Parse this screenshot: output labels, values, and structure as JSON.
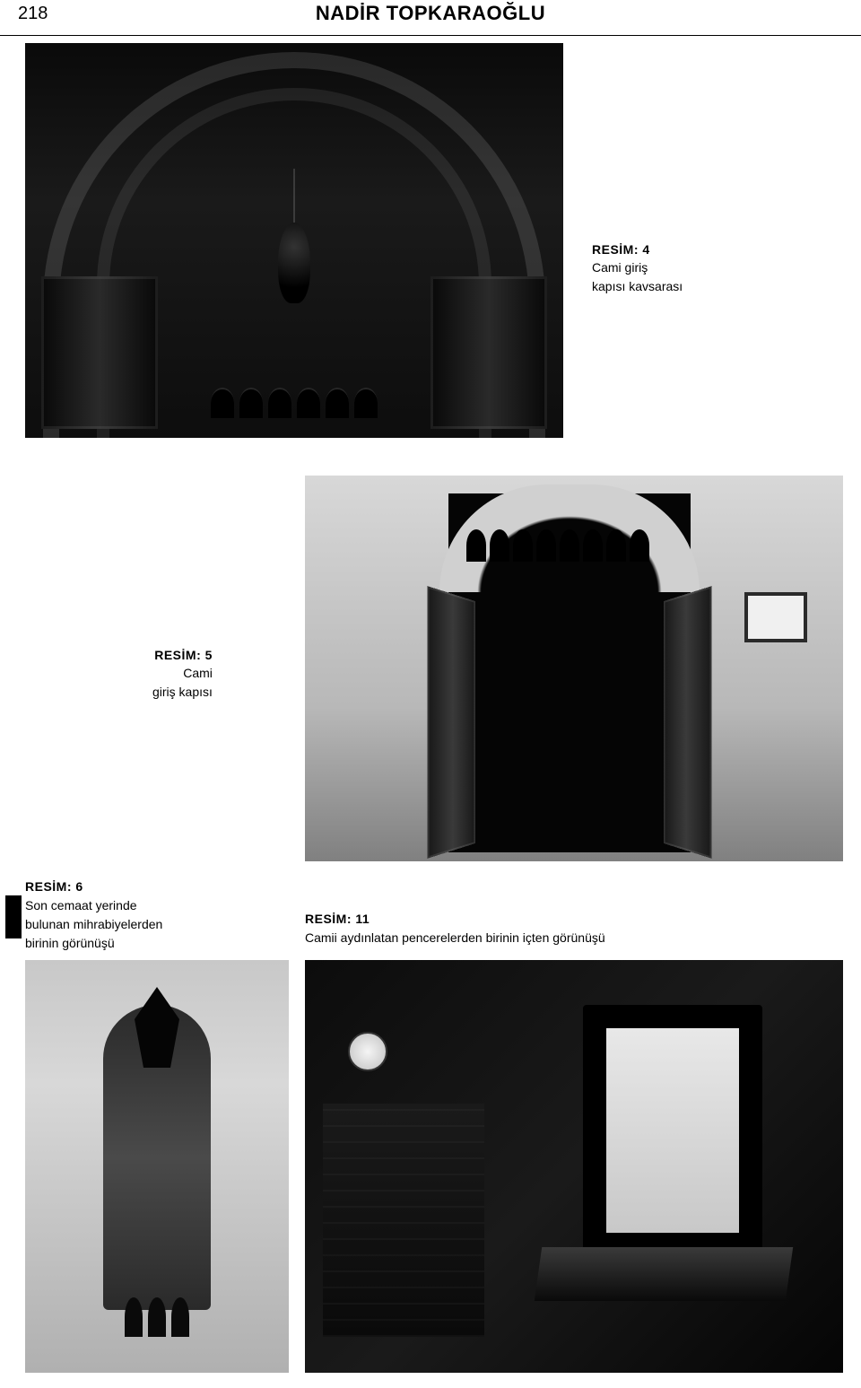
{
  "header": {
    "page_number": "218",
    "author": "NADİR TOPKARAOĞLU"
  },
  "fig4": {
    "title": "RESİM: 4",
    "line1": "Cami giriş",
    "line2": "kapısı kavsarası"
  },
  "fig5": {
    "title": "RESİM: 5",
    "line1": "Cami",
    "line2": "giriş kapısı"
  },
  "fig6": {
    "title": "RESİM: 6",
    "line1": "Son cemaat yerinde",
    "line2": "bulunan mihrabiyelerden",
    "line3": "birinin görünüşü"
  },
  "fig11": {
    "title": "RESİM: 11",
    "line1": "Camii aydınlatan pencerelerden birinin içten görünüşü"
  }
}
